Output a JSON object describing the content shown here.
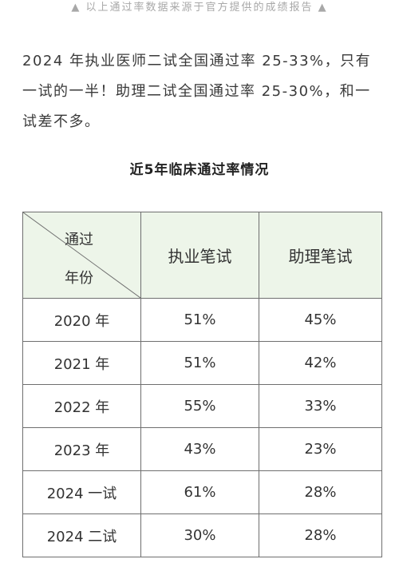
{
  "banner": {
    "text": "以上通过率数据来源于官方提供的成绩报告",
    "left_icon": "up-triangle-icon",
    "right_icon": "up-triangle-icon"
  },
  "intro": {
    "paragraph": "2024 年执业医师二试全国通过率 25-33%，只有一试的一半！助理二试全国通过率 25-30%，和一试差不多。"
  },
  "table": {
    "title": "近5年临床通过率情况",
    "corner_top": "通过",
    "corner_bottom": "年份",
    "columns": [
      "执业笔试",
      "助理笔试"
    ],
    "rows": [
      {
        "year": "2020 年",
        "practicing": "51%",
        "assistant": "45%"
      },
      {
        "year": "2021 年",
        "practicing": "51%",
        "assistant": "42%"
      },
      {
        "year": "2022 年",
        "practicing": "55%",
        "assistant": "33%"
      },
      {
        "year": "2023 年",
        "practicing": "43%",
        "assistant": "23%"
      },
      {
        "year": "2024 一试",
        "practicing": "61%",
        "assistant": "28%"
      },
      {
        "year": "2024 二试",
        "practicing": "30%",
        "assistant": "28%"
      }
    ],
    "header_bg": "#edf5e9"
  }
}
